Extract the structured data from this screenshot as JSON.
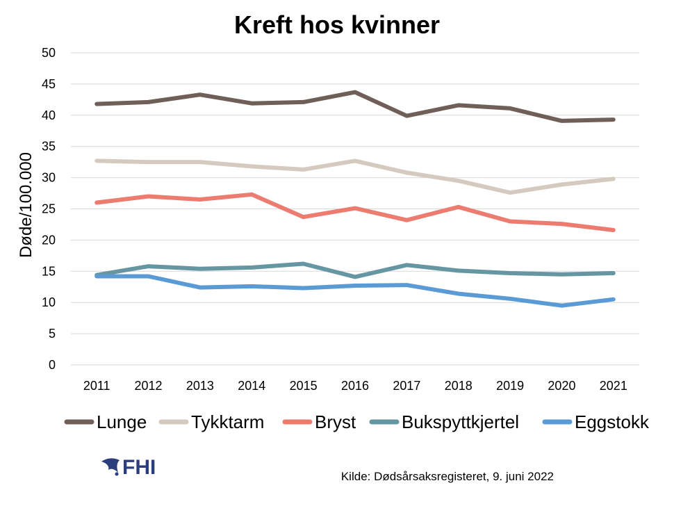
{
  "chart_data": {
    "type": "line",
    "title": "Kreft hos kvinner",
    "ylabel": "Døde/100.000",
    "xlabel": "",
    "ylim": [
      0,
      50
    ],
    "yticks": [
      0,
      5,
      10,
      15,
      20,
      25,
      30,
      35,
      40,
      45,
      50
    ],
    "categories": [
      "2011",
      "2012",
      "2013",
      "2014",
      "2015",
      "2016",
      "2017",
      "2018",
      "2019",
      "2020",
      "2021"
    ],
    "grid": true,
    "legend_position": "bottom",
    "series": [
      {
        "name": "Lunge",
        "color": "#6f5f58",
        "values": [
          41.8,
          42.1,
          43.3,
          41.9,
          42.1,
          43.7,
          39.9,
          41.6,
          41.1,
          39.1,
          39.3
        ]
      },
      {
        "name": "Tykktarm",
        "color": "#d5cabf",
        "values": [
          32.7,
          32.5,
          32.5,
          31.8,
          31.3,
          32.7,
          30.8,
          29.5,
          27.6,
          28.9,
          29.8
        ]
      },
      {
        "name": "Bryst",
        "color": "#ec7b70",
        "values": [
          26.0,
          27.0,
          26.5,
          27.3,
          23.7,
          25.1,
          23.2,
          25.3,
          23.0,
          22.6,
          21.6
        ]
      },
      {
        "name": "Bukspyttkjertel",
        "color": "#6796a3",
        "values": [
          14.4,
          15.8,
          15.4,
          15.6,
          16.2,
          14.1,
          16.0,
          15.1,
          14.7,
          14.5,
          14.7
        ]
      },
      {
        "name": "Eggstokk",
        "color": "#5b9bd5",
        "values": [
          14.2,
          14.2,
          12.4,
          12.6,
          12.3,
          12.7,
          12.8,
          11.4,
          10.6,
          9.5,
          10.5
        ]
      }
    ]
  },
  "logo": {
    "text": "FHI"
  },
  "source": "Kilde: Dødsårsaksregisteret, 9. juni 2022"
}
